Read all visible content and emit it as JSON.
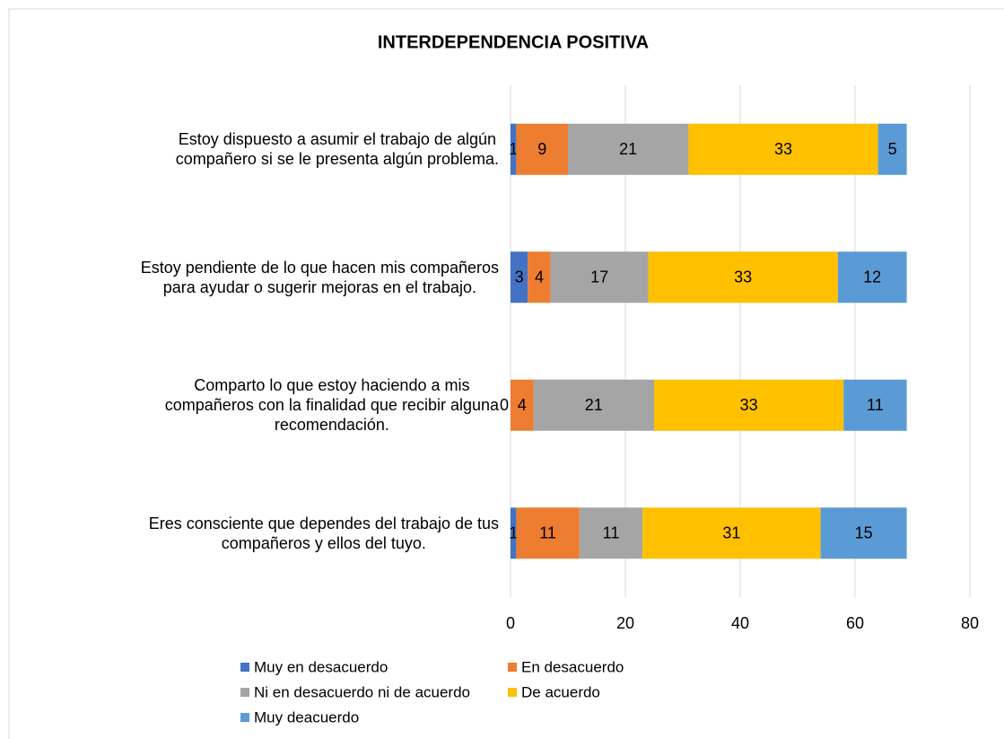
{
  "chart_data": {
    "type": "stacked_bar_horizontal",
    "title": "INTERDEPENDENCIA POSITIVA",
    "categories": [
      "Estoy dispuesto a asumir el trabajo de algún\ncompañero si se le presenta algún problema.",
      "Estoy pendiente de lo que hacen mis compañeros\npara ayudar o sugerir mejoras en el trabajo.",
      "Comparto lo que estoy haciendo a mis\ncompañeros con la finalidad que recibir alguna\nrecomendación.",
      "Eres consciente que dependes del trabajo de tus\ncompañeros y ellos del tuyo."
    ],
    "series": [
      {
        "name": "Muy en desacuerdo",
        "color": "#4472c4",
        "values": [
          1,
          3,
          0,
          1
        ]
      },
      {
        "name": "En desacuerdo",
        "color": "#ed7d31",
        "values": [
          9,
          4,
          4,
          11
        ]
      },
      {
        "name": "Ni en desacuerdo ni de acuerdo",
        "color": "#a5a5a5",
        "values": [
          21,
          17,
          21,
          11
        ]
      },
      {
        "name": "De acuerdo",
        "color": "#ffc000",
        "values": [
          33,
          33,
          33,
          31
        ]
      },
      {
        "name": "Muy deacuerdo",
        "color": "#5b9bd5",
        "values": [
          5,
          12,
          11,
          15
        ]
      }
    ],
    "xlim": [
      0,
      80
    ],
    "xticks": [
      0,
      20,
      40,
      60,
      80
    ],
    "grid": true,
    "legend": "bottom"
  }
}
